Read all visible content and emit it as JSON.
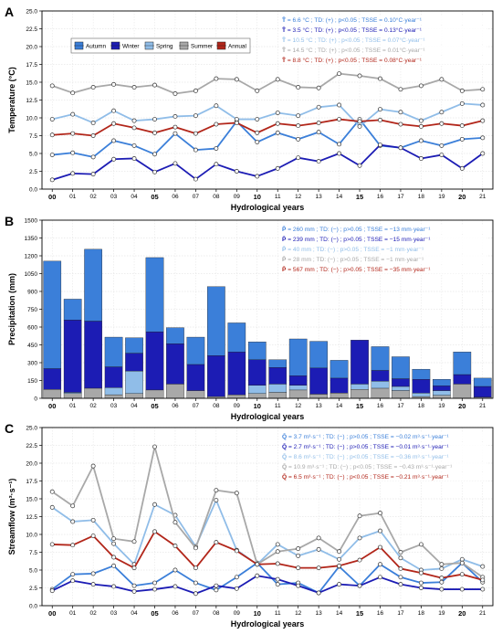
{
  "chart_data": [
    {
      "type": "line",
      "panel": "A",
      "xlabel": "Hydrological years",
      "ylabel": "Temperature (°C)",
      "ylim": [
        0,
        25
      ],
      "yticks": [
        0,
        2.5,
        5,
        7.5,
        10,
        12.5,
        15,
        17.5,
        20,
        22.5,
        25
      ],
      "ytick_labels": [
        "0.0",
        "2.5",
        "5.0",
        "7.5",
        "10.0",
        "12.5",
        "15.0",
        "17.5",
        "20.0",
        "22.5",
        "25.0"
      ],
      "categories": [
        "00",
        "01",
        "02",
        "03",
        "04",
        "05",
        "06",
        "07",
        "08",
        "09",
        "10",
        "11",
        "12",
        "13",
        "14",
        "15",
        "16",
        "17",
        "18",
        "19",
        "20",
        "21"
      ],
      "grid": true,
      "legend": "top-left",
      "legend_entries": [
        "Autumn",
        "Winter",
        "Spring",
        "Summer",
        "Annual"
      ],
      "series": [
        {
          "name": "Autumn",
          "color": "#3b7fd9",
          "values": [
            4.8,
            5.1,
            4.5,
            6.8,
            6.1,
            4.9,
            7.8,
            5.5,
            5.7,
            9.5,
            6.6,
            7.9,
            7.0,
            8.0,
            6.3,
            9.8,
            6.1,
            5.8,
            6.8,
            6.1,
            7.0,
            7.2
          ]
        },
        {
          "name": "Winter",
          "color": "#1c1cb4",
          "values": [
            1.3,
            2.2,
            2.1,
            4.2,
            4.3,
            2.4,
            3.6,
            1.4,
            3.5,
            2.5,
            1.8,
            2.9,
            4.4,
            3.9,
            5.0,
            3.3,
            6.2,
            5.8,
            4.3,
            4.8,
            2.9,
            5.0
          ]
        },
        {
          "name": "Spring",
          "color": "#90bde8",
          "values": [
            9.8,
            10.5,
            9.3,
            11.0,
            9.6,
            9.8,
            10.2,
            10.3,
            11.7,
            9.8,
            9.8,
            10.7,
            10.3,
            11.5,
            11.8,
            8.8,
            11.2,
            10.8,
            9.6,
            10.8,
            12.0,
            11.8
          ]
        },
        {
          "name": "Summer",
          "color": "#a8a8a8",
          "values": [
            14.5,
            13.5,
            14.3,
            14.7,
            14.3,
            14.6,
            13.4,
            13.8,
            15.5,
            15.4,
            13.8,
            15.4,
            14.3,
            14.2,
            16.2,
            15.9,
            15.5,
            14.0,
            14.5,
            15.4,
            13.8,
            14.0
          ]
        },
        {
          "name": "Annual",
          "color": "#b2261a",
          "values": [
            7.6,
            7.8,
            7.5,
            9.2,
            8.6,
            7.9,
            8.7,
            7.8,
            9.1,
            9.3,
            7.9,
            9.2,
            8.9,
            9.3,
            9.8,
            9.5,
            9.7,
            9.1,
            8.8,
            9.2,
            8.9,
            9.6
          ]
        }
      ],
      "annotations": [
        {
          "var": "T̄",
          "text": " = 6.6 °C ; TD: (+) ; p<0.05  ;  TSSE = 0.10°C·year⁻¹",
          "color": "#3b7fd9"
        },
        {
          "var": "T̄",
          "text": " = 3.5 °C ; TD: (+) ; p<0.05  ;  TSSE = 0.13°C·year⁻¹",
          "color": "#1c1cb4"
        },
        {
          "var": "T̄",
          "text": " = 10.5 °C ; TD: (+) ; p<0.05  ;  TSSE = 0.07°C·year⁻¹",
          "color": "#90bde8"
        },
        {
          "var": "T̄",
          "text": " = 14.5 °C ; TD: (+) ; p<0.05  ;  TSSE = 0.01°C·year⁻¹",
          "color": "#a8a8a8"
        },
        {
          "var": "T̄",
          "text": " = 8.8 °C ; TD: (+) ; p<0.05  ;  TSSE = 0.08°C·year⁻¹",
          "color": "#b2261a"
        }
      ]
    },
    {
      "type": "bar",
      "panel": "B",
      "stacked": true,
      "xlabel": "Hydrological years",
      "ylabel": "Precipitation (mm)",
      "ylim": [
        0,
        1500
      ],
      "yticks": [
        0,
        150,
        300,
        450,
        600,
        750,
        900,
        1050,
        1200,
        1350,
        1500
      ],
      "ytick_labels": [
        "0",
        "150",
        "300",
        "450",
        "600",
        "750",
        "900",
        "1050",
        "1200",
        "1350",
        "1500"
      ],
      "categories": [
        "00",
        "01",
        "02",
        "03",
        "04",
        "05",
        "06",
        "07",
        "08",
        "09",
        "10",
        "11",
        "12",
        "13",
        "14",
        "15",
        "16",
        "17",
        "18",
        "19",
        "20",
        "21"
      ],
      "grid": true,
      "series": [
        {
          "name": "Summer",
          "color": "#a8a8a8",
          "values": [
            75,
            40,
            85,
            30,
            40,
            70,
            120,
            65,
            15,
            30,
            40,
            50,
            70,
            35,
            45,
            75,
            85,
            65,
            15,
            25,
            120,
            10
          ]
        },
        {
          "name": "Spring",
          "color": "#90bde8",
          "values": [
            0,
            10,
            0,
            60,
            190,
            0,
            0,
            0,
            0,
            0,
            70,
            70,
            40,
            0,
            0,
            45,
            60,
            35,
            30,
            40,
            0,
            0
          ]
        },
        {
          "name": "Winter",
          "color": "#1c1cb4",
          "values": [
            175,
            610,
            565,
            175,
            150,
            490,
            340,
            220,
            345,
            360,
            215,
            140,
            80,
            220,
            125,
            370,
            90,
            65,
            115,
            40,
            80,
            90
          ]
        },
        {
          "name": "Autumn",
          "color": "#3b7fd9",
          "values": [
            905,
            175,
            605,
            250,
            130,
            625,
            135,
            230,
            580,
            245,
            150,
            65,
            310,
            225,
            150,
            0,
            200,
            185,
            85,
            55,
            190,
            70
          ]
        }
      ],
      "annotations": [
        {
          "var": "P̄",
          "text": " = 260 mm ; TD: (−) ; p>0.05  ;  TSSE = −13 mm·year⁻¹",
          "color": "#3b7fd9"
        },
        {
          "var": "P̄",
          "text": " = 239 mm ; TD: (−) ; p>0.05  ;  TSSE = −15 mm·year⁻¹",
          "color": "#1c1cb4"
        },
        {
          "var": "P̄",
          "text": " = 40 mm ; TD: (−) ; p>0.05  ;  TSSE = −1 mm·year⁻¹",
          "color": "#90bde8"
        },
        {
          "var": "P̄",
          "text": " = 28 mm ; TD: (−) ; p>0.05  ;  TSSE = −1 mm·year⁻¹",
          "color": "#a8a8a8"
        },
        {
          "var": "P̄",
          "text": " = 567 mm ; TD: (−) ; p>0.05  ;  TSSE = −35 mm·year⁻¹",
          "color": "#b2261a"
        }
      ]
    },
    {
      "type": "line",
      "panel": "C",
      "xlabel": "Hydrological years",
      "ylabel": "Streamflow (m³·s⁻¹)",
      "ylim": [
        0,
        25
      ],
      "yticks": [
        0,
        2.5,
        5,
        7.5,
        10,
        12.5,
        15,
        17.5,
        20,
        22.5,
        25
      ],
      "ytick_labels": [
        "0.0",
        "2.5",
        "5.0",
        "7.5",
        "10.0",
        "12.5",
        "15.0",
        "17.5",
        "20.0",
        "22.5",
        "25.0"
      ],
      "categories": [
        "00",
        "01",
        "02",
        "03",
        "04",
        "05",
        "06",
        "07",
        "08",
        "09",
        "10",
        "11",
        "12",
        "13",
        "14",
        "15",
        "16",
        "17",
        "18",
        "19",
        "20",
        "21"
      ],
      "grid": true,
      "series": [
        {
          "name": "Autumn",
          "color": "#3b7fd9",
          "values": [
            2.3,
            4.4,
            4.5,
            5.6,
            2.8,
            3.2,
            5.0,
            3.2,
            2.2,
            4.0,
            6.0,
            3.0,
            3.2,
            1.8,
            5.5,
            2.8,
            5.8,
            4.0,
            3.2,
            3.3,
            6.0,
            3.3
          ]
        },
        {
          "name": "Winter",
          "color": "#1c1cb4",
          "values": [
            2.1,
            3.5,
            3.0,
            2.7,
            2.0,
            2.3,
            2.7,
            1.7,
            2.8,
            2.4,
            4.2,
            3.7,
            2.8,
            1.8,
            3.0,
            2.8,
            4.0,
            3.0,
            2.5,
            2.3,
            2.3,
            2.3
          ]
        },
        {
          "name": "Spring",
          "color": "#90bde8",
          "values": [
            13.8,
            11.8,
            12.0,
            8.7,
            5.8,
            14.2,
            12.7,
            8.3,
            14.8,
            7.8,
            5.8,
            8.6,
            7.0,
            7.9,
            6.5,
            9.5,
            10.5,
            6.7,
            5.0,
            5.2,
            6.5,
            5.5
          ]
        },
        {
          "name": "Summer",
          "color": "#a8a8a8",
          "values": [
            16.0,
            14.0,
            19.6,
            9.4,
            9.0,
            22.3,
            11.7,
            8.1,
            16.2,
            15.8,
            5.8,
            7.6,
            8.0,
            9.5,
            7.6,
            12.6,
            13.0,
            7.5,
            8.6,
            5.8,
            6.0,
            4.0
          ]
        },
        {
          "name": "Annual",
          "color": "#b2261a",
          "values": [
            8.6,
            8.5,
            9.8,
            6.8,
            5.3,
            10.4,
            8.4,
            5.3,
            8.9,
            7.7,
            5.8,
            5.9,
            5.3,
            5.3,
            5.6,
            6.4,
            8.2,
            5.2,
            4.6,
            3.9,
            4.4,
            3.6
          ]
        }
      ],
      "annotations": [
        {
          "var": "Q̄",
          "text": " = 3.7 m³·s⁻¹ ; TD: (−) ; p>0.05  ;  TSSE = −0.02 m³·s⁻¹·year⁻¹",
          "color": "#3b7fd9"
        },
        {
          "var": "Q̄",
          "text": " = 2.7 m³·s⁻¹ ; TD: (−) ; p>0.05  ;  TSSE = −0.01 m³·s⁻¹·year⁻¹",
          "color": "#1c1cb4"
        },
        {
          "var": "Q̄",
          "text": " = 8.6 m³·s⁻¹ ; TD: (−) ; p<0.05  ;  TSSE = −0.36 m³·s⁻¹·year⁻¹",
          "color": "#90bde8"
        },
        {
          "var": "Q̄",
          "text": " = 10.9 m³·s⁻¹ ; TD: (−) ; p<0.05  ;  TSSE = −0.43 m³·s⁻¹·year⁻¹",
          "color": "#a8a8a8"
        },
        {
          "var": "Q̄",
          "text": " = 6.5 m³·s⁻¹ ; TD: (−) ; p<0.05  ;  TSSE = −0.21 m³·s⁻¹·year⁻¹",
          "color": "#b2261a"
        }
      ]
    }
  ],
  "panel_labels": [
    "A",
    "B",
    "C"
  ],
  "bold_tick_labels": [
    "00",
    "05",
    "10",
    "15",
    "20"
  ]
}
